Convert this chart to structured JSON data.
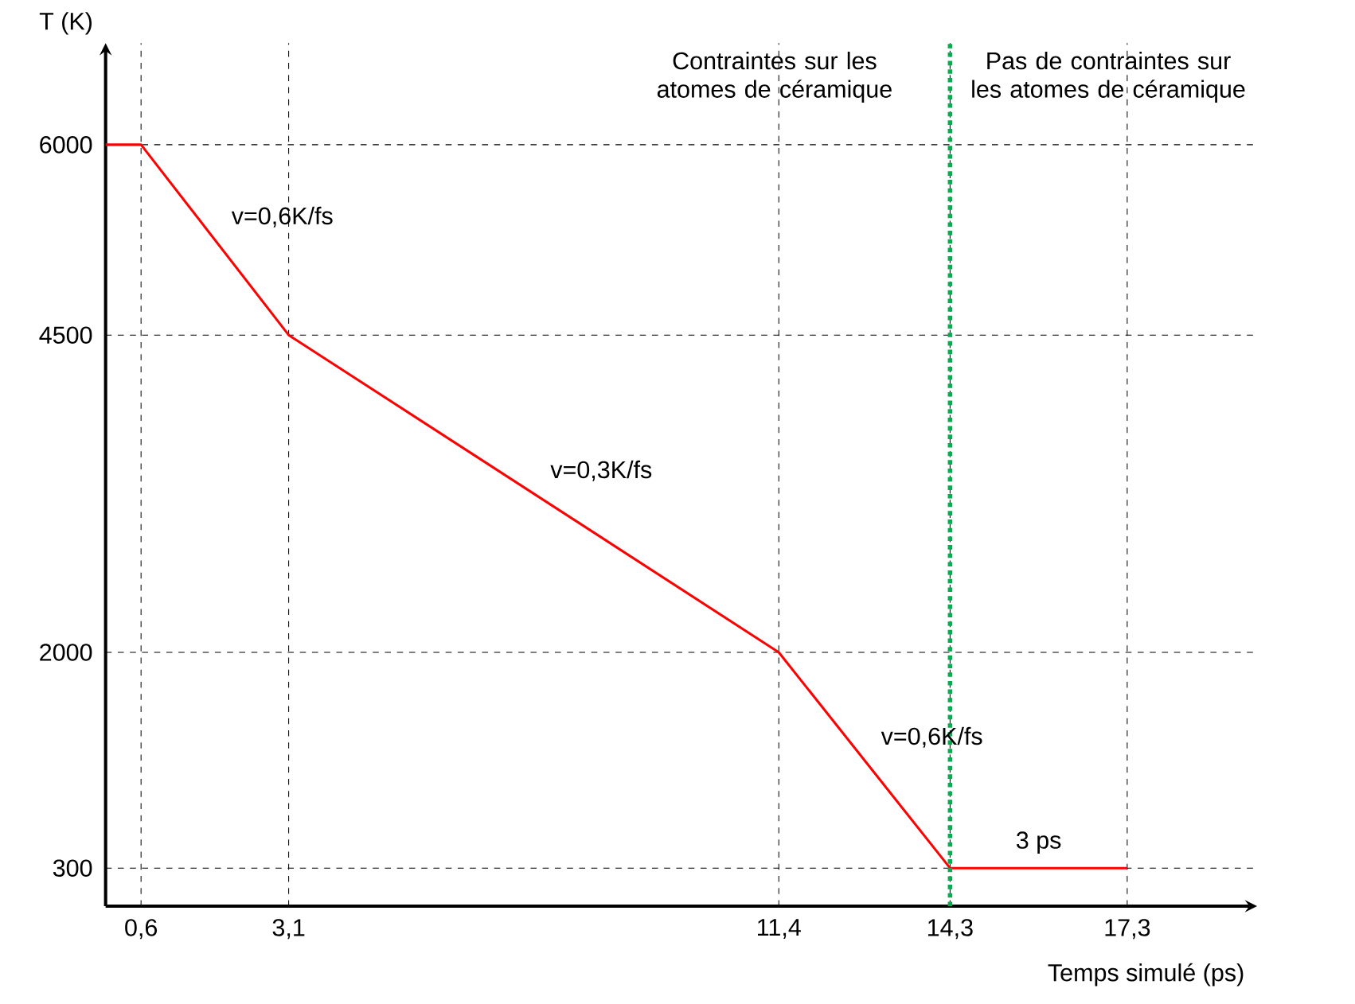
{
  "chart_data": {
    "type": "line",
    "xlabel": "Temps simulé (ps)",
    "ylabel": "T (K)",
    "x": [
      0,
      0.6,
      3.1,
      11.4,
      14.3,
      17.3
    ],
    "values": [
      6000,
      6000,
      4500,
      2000,
      300,
      300
    ],
    "color": "#ff0000",
    "marker": "none",
    "line_style": "solid",
    "grid": true,
    "xlim": [
      0,
      19.5
    ],
    "ylim": [
      0,
      6800
    ],
    "xticks": [
      {
        "value": 0.6,
        "label": "0,6"
      },
      {
        "value": 3.1,
        "label": "3,1"
      },
      {
        "value": 11.4,
        "label": "11,4"
      },
      {
        "value": 14.3,
        "label": "14,3"
      },
      {
        "value": 17.3,
        "label": "17,3"
      }
    ],
    "yticks": [
      300,
      2000,
      4500,
      6000
    ],
    "ref_lines": [
      {
        "axis": "x",
        "value": 14.3,
        "color": "#00b050",
        "line_style": "dotted"
      }
    ],
    "annotations": [
      "Contraintes sur les atomes de céramique",
      "Pas de contraintes sur les atomes de céramique",
      {
        "text": "v=0,6K/fs",
        "x": 1.85,
        "y": 5250
      },
      {
        "text": "v=0,3K/fs",
        "x": 7.25,
        "y": 3250
      },
      {
        "text": "v=0,6K/fs",
        "x": 12.85,
        "y": 1150
      },
      {
        "text": "3 ps",
        "x": 15.8,
        "y": 300
      }
    ]
  }
}
